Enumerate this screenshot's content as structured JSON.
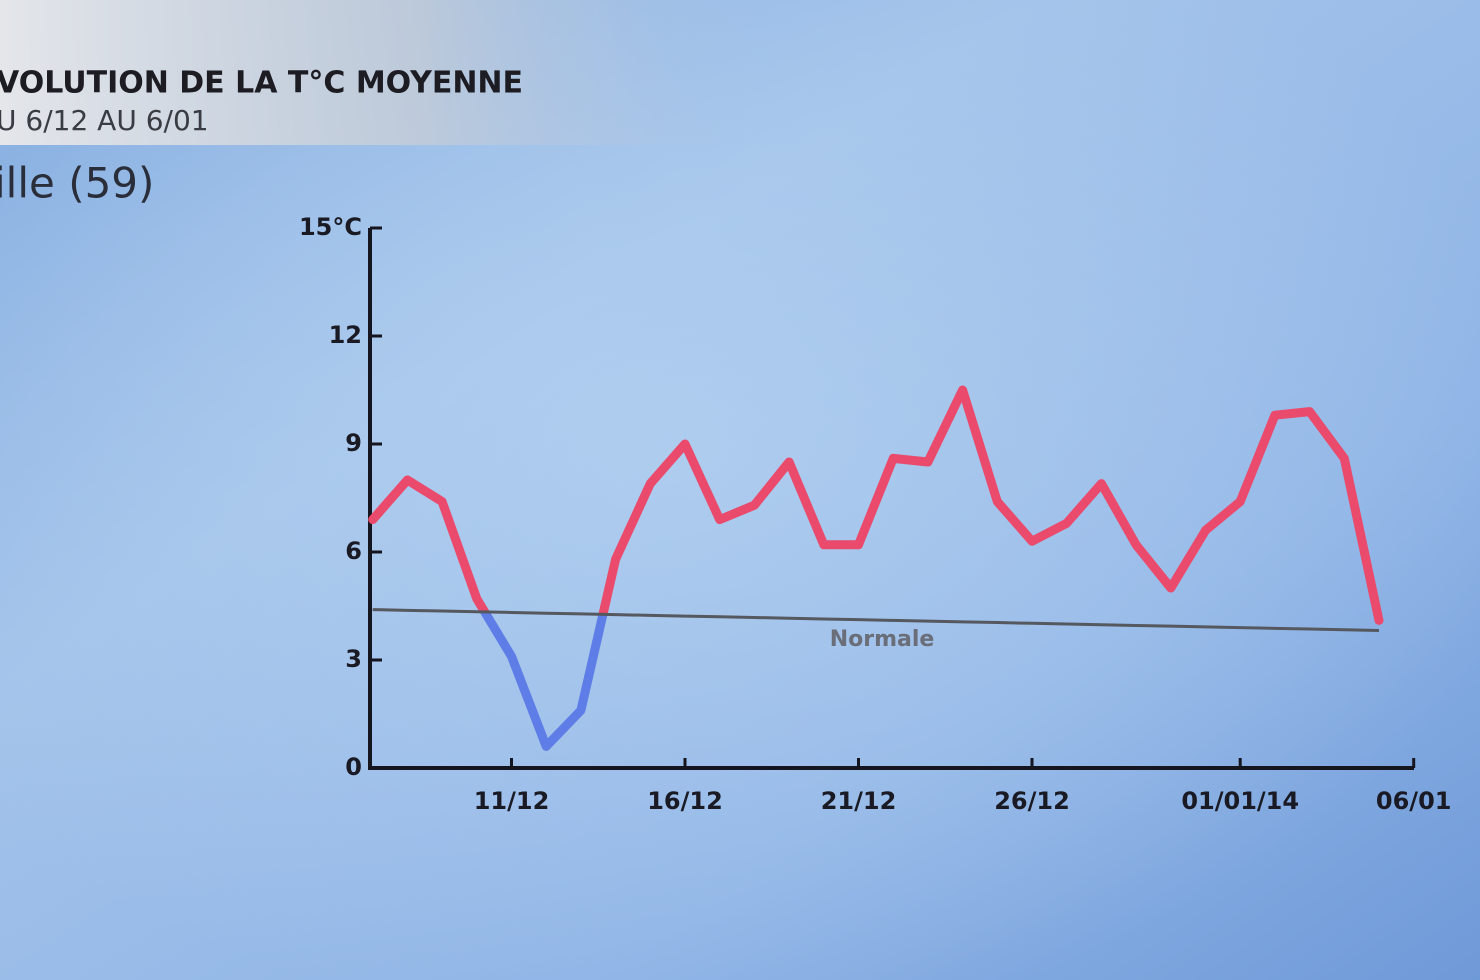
{
  "chart_data": {
    "type": "line",
    "title": "VOLUTION DE LA T°C MOYENNE",
    "subtitle": "U 6/12 AU 6/01",
    "location": "ille (59)",
    "categories": [
      null,
      null,
      null,
      null,
      "11/12",
      null,
      null,
      null,
      null,
      "16/12",
      null,
      null,
      null,
      null,
      "21/12",
      null,
      null,
      null,
      null,
      "26/12",
      null,
      null,
      null,
      null,
      null,
      "01/01/14",
      null,
      null,
      null,
      null,
      "06/01"
    ],
    "series": [
      {
        "color": "#ea4a6c",
        "below_color": "#5f7de6",
        "values": [
          6.9,
          8.0,
          7.4,
          4.7,
          3.1,
          0.6,
          1.6,
          5.8,
          7.9,
          9.0,
          6.9,
          7.3,
          8.5,
          6.2,
          6.2,
          8.6,
          8.5,
          10.5,
          7.4,
          6.3,
          6.8,
          7.9,
          6.2,
          5.0,
          6.6,
          7.4,
          9.8,
          9.9,
          8.6,
          4.1,
          null
        ]
      },
      {
        "name": "Normale",
        "color": "#55585e",
        "values": [
          4.4,
          4.38,
          4.36,
          4.34,
          4.32,
          4.3,
          4.28,
          4.26,
          4.24,
          4.22,
          4.2,
          4.18,
          4.16,
          4.14,
          4.12,
          4.1,
          4.08,
          4.06,
          4.04,
          4.02,
          4.0,
          3.98,
          3.96,
          3.94,
          3.92,
          3.9,
          3.88,
          3.86,
          3.84,
          3.82,
          null
        ]
      }
    ],
    "ylim": [
      0,
      15
    ],
    "yticks": [
      0,
      3,
      6,
      9,
      12,
      {
        "value": 15,
        "label": "15°C"
      }
    ]
  }
}
